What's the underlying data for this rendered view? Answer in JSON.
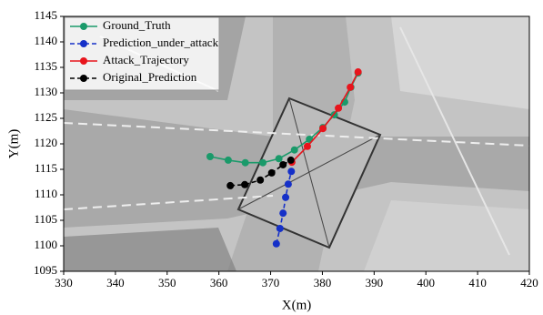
{
  "chart_data": {
    "type": "line",
    "xlabel": "X(m)",
    "ylabel": "Y(m)",
    "xlim": [
      330,
      420
    ],
    "xticks": [
      330,
      340,
      350,
      360,
      370,
      380,
      390,
      400,
      410,
      420
    ],
    "ylim": [
      1095,
      1145
    ],
    "yticks": [
      1095,
      1100,
      1105,
      1110,
      1115,
      1120,
      1125,
      1130,
      1135,
      1140,
      1145
    ],
    "legend": "upper left",
    "series": [
      {
        "name": "Ground_Truth",
        "color": "#1a9a6a",
        "linestyle": "solid",
        "x": [
          358.3,
          361.8,
          365.1,
          368.5,
          371.6,
          374.6,
          377.5,
          380.1,
          382.3,
          384.3,
          385.5,
          386.9
        ],
        "values": [
          1117.5,
          1116.8,
          1116.3,
          1116.3,
          1117.1,
          1118.8,
          1120.9,
          1123.2,
          1125.7,
          1128.2,
          1131.1,
          1133.9
        ]
      },
      {
        "name": "Prediction_under_attack",
        "color": "#1530c8",
        "linestyle": "dashed",
        "x": [
          371.1,
          371.8,
          372.4,
          372.9,
          373.4,
          374.0
        ],
        "values": [
          1100.4,
          1103.4,
          1106.4,
          1109.5,
          1112.1,
          1114.6
        ]
      },
      {
        "name": "Attack_Trajectory",
        "color": "#e8141c",
        "linestyle": "solid",
        "x": [
          374.1,
          377.1,
          380.1,
          383.1,
          385.4,
          386.9
        ],
        "values": [
          1116.4,
          1119.5,
          1123.0,
          1127.0,
          1131.1,
          1134.1
        ]
      },
      {
        "name": "Original_Prediction",
        "color": "#000000",
        "linestyle": "dashed",
        "x": [
          362.2,
          365.0,
          368.0,
          370.2,
          372.4,
          373.9
        ],
        "values": [
          1111.8,
          1112.0,
          1112.9,
          1114.3,
          1115.9,
          1116.8
        ]
      }
    ]
  }
}
